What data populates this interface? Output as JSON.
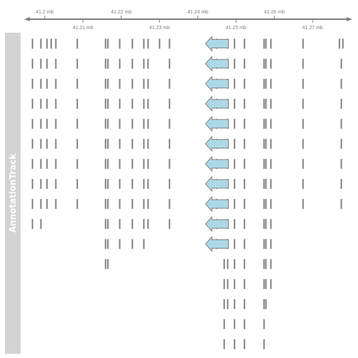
{
  "panel_bg": "#d3d3d3",
  "axis_color": "#808080",
  "feature_color": "#808080",
  "arrow_fill": "#add8e6",
  "arrow_stroke": "#808080",
  "track": {
    "title": "AnnotationTrack"
  },
  "chart_data": {
    "type": "genome-annotation-track",
    "title": "",
    "xlabel": "",
    "ylabel": "AnnotationTrack",
    "xlim_mb": [
      41.195,
      41.28
    ],
    "grid": false,
    "legend": "none",
    "axis_ticks": [
      {
        "value": 41.2,
        "label": "41.2 mb",
        "side": "top"
      },
      {
        "value": 41.21,
        "label": "41.21 mb",
        "side": "bottom"
      },
      {
        "value": 41.22,
        "label": "41.22 mb",
        "side": "top"
      },
      {
        "value": 41.23,
        "label": "41.23 mb",
        "side": "bottom"
      },
      {
        "value": 41.24,
        "label": "41.24 mb",
        "side": "top"
      },
      {
        "value": 41.25,
        "label": "41.25 mb",
        "side": "bottom"
      },
      {
        "value": 41.26,
        "label": "41.26 mb",
        "side": "top"
      },
      {
        "value": 41.27,
        "label": "41.27 mb",
        "side": "bottom"
      }
    ],
    "gene_strand": "-",
    "rows": [
      {
        "exons": [
          41.1968,
          41.199,
          41.2006,
          41.2017,
          41.2029,
          41.2085,
          41.2159,
          41.2165,
          41.2196,
          41.2229,
          41.2259,
          41.227,
          41.23,
          41.2326,
          41.2449,
          41.2478,
          41.2496,
          41.2522,
          41.2573,
          41.2578,
          41.2591,
          41.2675,
          41.277,
          41.2779
        ],
        "arrow": true
      },
      {
        "exons": [
          41.1968,
          41.199,
          41.2006,
          41.2029,
          41.2085,
          41.2159,
          41.2165,
          41.2196,
          41.2229,
          41.2259,
          41.227,
          41.2326,
          41.2449,
          41.2478,
          41.2496,
          41.2522,
          41.2573,
          41.2578,
          41.2591,
          41.2675,
          41.2775
        ],
        "arrow": true
      },
      {
        "exons": [
          41.1968,
          41.199,
          41.2006,
          41.2029,
          41.2085,
          41.2159,
          41.2165,
          41.2196,
          41.2229,
          41.2259,
          41.227,
          41.2326,
          41.2449,
          41.2478,
          41.2496,
          41.2522,
          41.2573,
          41.2578,
          41.2591,
          41.2675,
          41.2775
        ],
        "arrow": true
      },
      {
        "exons": [
          41.1968,
          41.199,
          41.2006,
          41.2029,
          41.2085,
          41.2159,
          41.2165,
          41.2196,
          41.2229,
          41.2259,
          41.227,
          41.2326,
          41.2449,
          41.2478,
          41.2496,
          41.2522,
          41.2573,
          41.2578,
          41.2591,
          41.2675,
          41.2775
        ],
        "arrow": true
      },
      {
        "exons": [
          41.1968,
          41.199,
          41.2006,
          41.2029,
          41.2085,
          41.2159,
          41.2165,
          41.2196,
          41.2229,
          41.2259,
          41.227,
          41.2326,
          41.2449,
          41.2478,
          41.2496,
          41.2522,
          41.2573,
          41.2578,
          41.2591,
          41.2675,
          41.2775
        ],
        "arrow": true
      },
      {
        "exons": [
          41.1968,
          41.199,
          41.2006,
          41.2029,
          41.2085,
          41.2159,
          41.2165,
          41.2196,
          41.2229,
          41.2259,
          41.227,
          41.2326,
          41.2449,
          41.2478,
          41.2496,
          41.2522,
          41.2573,
          41.2578,
          41.2591,
          41.2675,
          41.2775
        ],
        "arrow": true
      },
      {
        "exons": [
          41.1968,
          41.199,
          41.2006,
          41.2029,
          41.2085,
          41.2159,
          41.2165,
          41.2196,
          41.2229,
          41.2259,
          41.227,
          41.2326,
          41.2449,
          41.2478,
          41.2496,
          41.2522,
          41.2573,
          41.2578,
          41.2591,
          41.2675,
          41.2775
        ],
        "arrow": true
      },
      {
        "exons": [
          41.1968,
          41.199,
          41.2006,
          41.2029,
          41.2085,
          41.2159,
          41.2165,
          41.2196,
          41.2229,
          41.2259,
          41.227,
          41.2326,
          41.2449,
          41.2478,
          41.2496,
          41.2522,
          41.2573,
          41.2578,
          41.2591,
          41.2675,
          41.2775
        ],
        "arrow": true
      },
      {
        "exons": [
          41.1968,
          41.199,
          41.2006,
          41.2029,
          41.2085,
          41.2159,
          41.2165,
          41.2196,
          41.2229,
          41.2259,
          41.227,
          41.2326,
          41.2449,
          41.2478,
          41.2496,
          41.2522,
          41.2573,
          41.2578,
          41.2591,
          41.2675,
          41.2775
        ],
        "arrow": true
      },
      {
        "exons": [
          41.1968,
          41.199,
          41.2159,
          41.2165,
          41.2196,
          41.2229,
          41.2259,
          41.227,
          41.2326,
          41.2449,
          41.2478,
          41.2496,
          41.2522,
          41.2573,
          41.2578,
          41.2591
        ],
        "arrow": true
      },
      {
        "exons": [
          41.2159,
          41.2165,
          41.2196,
          41.2229,
          41.2259,
          41.2449,
          41.2478,
          41.2496,
          41.2522,
          41.2573,
          41.2578,
          41.2591
        ],
        "arrow": true
      },
      {
        "exons": [
          41.2159,
          41.2165,
          41.2469,
          41.2478,
          41.2496,
          41.2522,
          41.2573,
          41.2578,
          41.2591
        ],
        "arrow": false
      },
      {
        "exons": [
          41.2469,
          41.2478,
          41.2496,
          41.2522,
          41.2573,
          41.2578,
          41.2591
        ],
        "arrow": false
      },
      {
        "exons": [
          41.2469,
          41.2478,
          41.2496,
          41.2522,
          41.2573,
          41.2578
        ],
        "arrow": false
      },
      {
        "exons": [
          41.2469,
          41.2496,
          41.2522,
          41.2573
        ],
        "arrow": false
      },
      {
        "exons": [
          41.2469,
          41.2496,
          41.2522,
          41.2573
        ],
        "arrow": false
      }
    ]
  }
}
